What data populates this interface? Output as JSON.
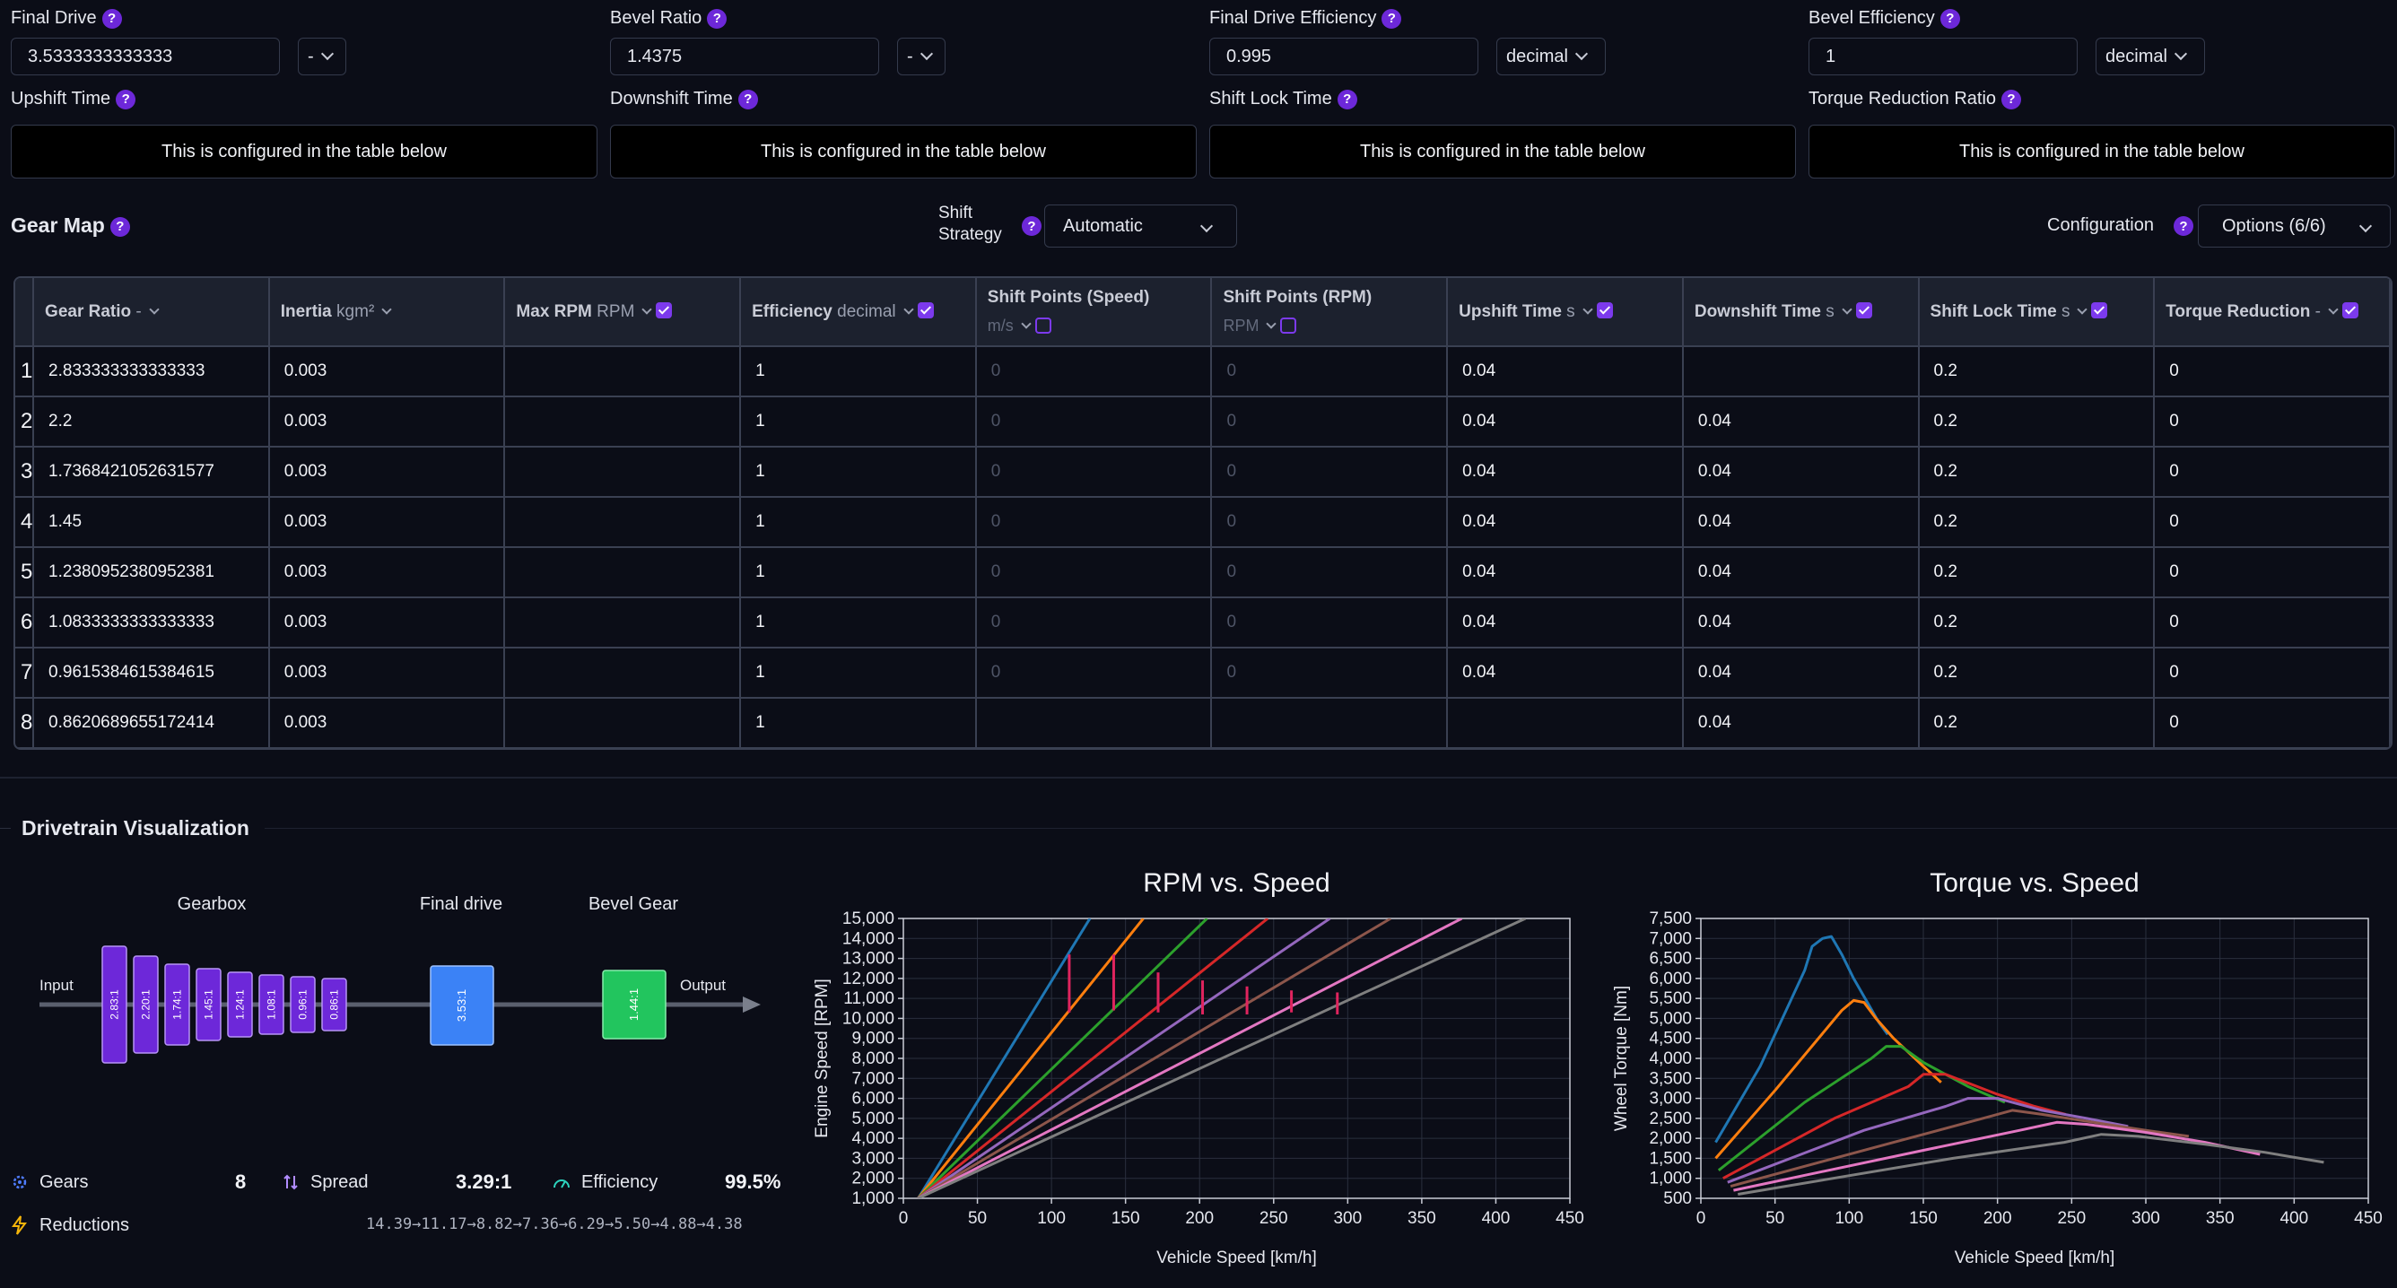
{
  "params": [
    {
      "label": "Final Drive",
      "value": "3.5333333333333",
      "unit": "-"
    },
    {
      "label": "Bevel Ratio",
      "value": "1.4375",
      "unit": "-"
    },
    {
      "label": "Final Drive Efficiency",
      "value": "0.995",
      "unit": "decimal"
    },
    {
      "label": "Bevel Efficiency",
      "value": "1",
      "unit": "decimal"
    }
  ],
  "shift_params": [
    {
      "label": "Upshift Time",
      "note": "This is configured in the table below"
    },
    {
      "label": "Downshift Time",
      "note": "This is configured in the table below"
    },
    {
      "label": "Shift Lock Time",
      "note": "This is configured in the table below"
    },
    {
      "label": "Torque Reduction Ratio",
      "note": "This is configured in the table below"
    }
  ],
  "gear_map": {
    "title": "Gear Map",
    "shift_strategy_label_1": "Shift",
    "shift_strategy_label_2": "Strategy",
    "shift_strategy_value": "Automatic",
    "configuration_label": "Configuration",
    "configuration_value": "Options (6/6)"
  },
  "table": {
    "columns": [
      {
        "title": "Gear Ratio",
        "unit": "-",
        "check": "none"
      },
      {
        "title": "Inertia",
        "unit": "kgm²",
        "check": "none"
      },
      {
        "title": "Max RPM",
        "unit": "RPM",
        "check": "on"
      },
      {
        "title": "Efficiency",
        "unit": "decimal",
        "check": "on"
      },
      {
        "title": "Shift Points (Speed)",
        "unit": "m/s",
        "check": "off"
      },
      {
        "title": "Shift Points (RPM)",
        "unit": "RPM",
        "check": "off"
      },
      {
        "title": "Upshift Time",
        "unit": "s",
        "check": "on"
      },
      {
        "title": "Downshift Time",
        "unit": "s",
        "check": "on"
      },
      {
        "title": "Shift Lock Time",
        "unit": "s",
        "check": "on"
      },
      {
        "title": "Torque Reduction",
        "unit": "-",
        "check": "on"
      }
    ],
    "rows": [
      {
        "n": "1",
        "ratio": "2.833333333333333",
        "inertia": "0.003",
        "maxrpm": "",
        "eff": "1",
        "sps": "0",
        "spr": "0",
        "up": "0.04",
        "down": "",
        "lock": "0.2",
        "tr": "0"
      },
      {
        "n": "2",
        "ratio": "2.2",
        "inertia": "0.003",
        "maxrpm": "",
        "eff": "1",
        "sps": "0",
        "spr": "0",
        "up": "0.04",
        "down": "0.04",
        "lock": "0.2",
        "tr": "0"
      },
      {
        "n": "3",
        "ratio": "1.7368421052631577",
        "inertia": "0.003",
        "maxrpm": "",
        "eff": "1",
        "sps": "0",
        "spr": "0",
        "up": "0.04",
        "down": "0.04",
        "lock": "0.2",
        "tr": "0"
      },
      {
        "n": "4",
        "ratio": "1.45",
        "inertia": "0.003",
        "maxrpm": "",
        "eff": "1",
        "sps": "0",
        "spr": "0",
        "up": "0.04",
        "down": "0.04",
        "lock": "0.2",
        "tr": "0"
      },
      {
        "n": "5",
        "ratio": "1.2380952380952381",
        "inertia": "0.003",
        "maxrpm": "",
        "eff": "1",
        "sps": "0",
        "spr": "0",
        "up": "0.04",
        "down": "0.04",
        "lock": "0.2",
        "tr": "0"
      },
      {
        "n": "6",
        "ratio": "1.0833333333333333",
        "inertia": "0.003",
        "maxrpm": "",
        "eff": "1",
        "sps": "0",
        "spr": "0",
        "up": "0.04",
        "down": "0.04",
        "lock": "0.2",
        "tr": "0"
      },
      {
        "n": "7",
        "ratio": "0.9615384615384615",
        "inertia": "0.003",
        "maxrpm": "",
        "eff": "1",
        "sps": "0",
        "spr": "0",
        "up": "0.04",
        "down": "0.04",
        "lock": "0.2",
        "tr": "0"
      },
      {
        "n": "8",
        "ratio": "0.8620689655172414",
        "inertia": "0.003",
        "maxrpm": "",
        "eff": "1",
        "sps": "",
        "spr": "",
        "up": "",
        "down": "0.04",
        "lock": "0.2",
        "tr": "0"
      }
    ]
  },
  "drivetrain": {
    "title": "Drivetrain Visualization",
    "gearbox_label": "Gearbox",
    "final_drive_label": "Final drive",
    "bevel_label": "Bevel Gear",
    "input_label": "Input",
    "output_label": "Output",
    "gear_tags": [
      "2.83:1",
      "2.20:1",
      "1.74:1",
      "1.45:1",
      "1.24:1",
      "1.08:1",
      "0.96:1",
      "0.86:1"
    ],
    "final_drive_tag": "3.53:1",
    "bevel_tag": "1.44:1",
    "gears_label": "Gears",
    "gears_value": "8",
    "spread_label": "Spread",
    "spread_value": "3.29:1",
    "efficiency_label": "Efficiency",
    "efficiency_value": "99.5%",
    "reductions_label": "Reductions",
    "reductions_value": "14.39→11.17→8.82→7.36→6.29→5.50→4.88→4.38",
    "colors": {
      "gear": "#6d28d9",
      "final_drive": "#3b82f6",
      "bevel": "#22c55e"
    }
  },
  "chart_data": [
    {
      "type": "line",
      "title": "RPM vs. Speed",
      "xlabel": "Vehicle Speed [km/h]",
      "ylabel": "Engine Speed [RPM]",
      "xlim": [
        0,
        450
      ],
      "ylim": [
        1000,
        15000
      ],
      "xticks": [
        "0",
        "50",
        "100",
        "150",
        "200",
        "250",
        "300",
        "350",
        "400",
        "450"
      ],
      "yticks": [
        "1,000",
        "2,000",
        "3,000",
        "4,000",
        "5,000",
        "6,000",
        "7,000",
        "8,000",
        "9,000",
        "10,000",
        "11,000",
        "12,000",
        "13,000",
        "14,000",
        "15,000"
      ],
      "grid": true,
      "series": [
        {
          "color": "#1f77b4",
          "points": [
            [
              10,
              1000
            ],
            [
              126,
              15000
            ]
          ]
        },
        {
          "color": "#ff7f0e",
          "points": [
            [
              10,
              1000
            ],
            [
              162,
              15000
            ]
          ]
        },
        {
          "color": "#2ca02c",
          "points": [
            [
              10,
              1000
            ],
            [
              205,
              15000
            ]
          ]
        },
        {
          "color": "#d62728",
          "points": [
            [
              10,
              1000
            ],
            [
              246,
              15000
            ]
          ]
        },
        {
          "color": "#9467bd",
          "points": [
            [
              10,
              1000
            ],
            [
              288,
              15000
            ]
          ]
        },
        {
          "color": "#8c564b",
          "points": [
            [
              10,
              1000
            ],
            [
              329,
              15000
            ]
          ]
        },
        {
          "color": "#e377c2",
          "points": [
            [
              10,
              1000
            ],
            [
              377,
              15000
            ]
          ]
        },
        {
          "color": "#7f7f7f",
          "points": [
            [
              10,
              1000
            ],
            [
              420,
              15000
            ]
          ]
        }
      ],
      "shift_marks": [
        {
          "x": 112,
          "y1": 13200,
          "y2": 10300
        },
        {
          "x": 142,
          "y1": 13200,
          "y2": 10400
        },
        {
          "x": 172,
          "y1": 12300,
          "y2": 10300
        },
        {
          "x": 202,
          "y1": 11900,
          "y2": 10200
        },
        {
          "x": 232,
          "y1": 11600,
          "y2": 10200
        },
        {
          "x": 262,
          "y1": 11400,
          "y2": 10300
        },
        {
          "x": 293,
          "y1": 11300,
          "y2": 10200
        }
      ],
      "shift_color": "#e0245e"
    },
    {
      "type": "line",
      "title": "Torque vs. Speed",
      "xlabel": "Vehicle Speed [km/h]",
      "ylabel": "Wheel Torque [Nm]",
      "xlim": [
        0,
        450
      ],
      "ylim": [
        500,
        7500
      ],
      "xticks": [
        "0",
        "50",
        "100",
        "150",
        "200",
        "250",
        "300",
        "350",
        "400",
        "450"
      ],
      "yticks": [
        "500",
        "1,000",
        "1,500",
        "2,000",
        "2,500",
        "3,000",
        "3,500",
        "4,000",
        "4,500",
        "5,000",
        "5,500",
        "6,000",
        "6,500",
        "7,000",
        "7,500"
      ],
      "grid": true,
      "series": [
        {
          "color": "#1f77b4",
          "points": [
            [
              10,
              1900
            ],
            [
              40,
              3800
            ],
            [
              70,
              6200
            ],
            [
              75,
              6800
            ],
            [
              82,
              7000
            ],
            [
              88,
              7050
            ],
            [
              95,
              6600
            ],
            [
              103,
              6000
            ],
            [
              120,
              4900
            ],
            [
              126,
              4600
            ]
          ]
        },
        {
          "color": "#ff7f0e",
          "points": [
            [
              10,
              1500
            ],
            [
              50,
              3200
            ],
            [
              95,
              5200
            ],
            [
              103,
              5450
            ],
            [
              110,
              5400
            ],
            [
              118,
              5000
            ],
            [
              130,
              4500
            ],
            [
              150,
              3800
            ],
            [
              162,
              3400
            ]
          ]
        },
        {
          "color": "#2ca02c",
          "points": [
            [
              12,
              1200
            ],
            [
              70,
              2900
            ],
            [
              115,
              4000
            ],
            [
              125,
              4300
            ],
            [
              135,
              4300
            ],
            [
              150,
              3900
            ],
            [
              180,
              3300
            ],
            [
              205,
              2900
            ]
          ]
        },
        {
          "color": "#d62728",
          "points": [
            [
              15,
              1000
            ],
            [
              90,
              2500
            ],
            [
              140,
              3300
            ],
            [
              150,
              3600
            ],
            [
              165,
              3600
            ],
            [
              200,
              3100
            ],
            [
              225,
              2800
            ],
            [
              246,
              2600
            ]
          ]
        },
        {
          "color": "#9467bd",
          "points": [
            [
              18,
              900
            ],
            [
              110,
              2200
            ],
            [
              165,
              2800
            ],
            [
              180,
              3000
            ],
            [
              200,
              3000
            ],
            [
              230,
              2700
            ],
            [
              260,
              2500
            ],
            [
              288,
              2300
            ]
          ]
        },
        {
          "color": "#8c564b",
          "points": [
            [
              20,
              800
            ],
            [
              130,
              1900
            ],
            [
              190,
              2500
            ],
            [
              210,
              2700
            ],
            [
              230,
              2600
            ],
            [
              265,
              2400
            ],
            [
              300,
              2200
            ],
            [
              329,
              2050
            ]
          ]
        },
        {
          "color": "#e377c2",
          "points": [
            [
              22,
              700
            ],
            [
              150,
              1700
            ],
            [
              215,
              2200
            ],
            [
              240,
              2400
            ],
            [
              260,
              2350
            ],
            [
              300,
              2150
            ],
            [
              340,
              1900
            ],
            [
              377,
              1600
            ]
          ]
        },
        {
          "color": "#7f7f7f",
          "points": [
            [
              25,
              600
            ],
            [
              170,
              1500
            ],
            [
              245,
              1900
            ],
            [
              270,
              2100
            ],
            [
              295,
              2050
            ],
            [
              340,
              1850
            ],
            [
              380,
              1650
            ],
            [
              420,
              1400
            ]
          ]
        }
      ]
    }
  ]
}
